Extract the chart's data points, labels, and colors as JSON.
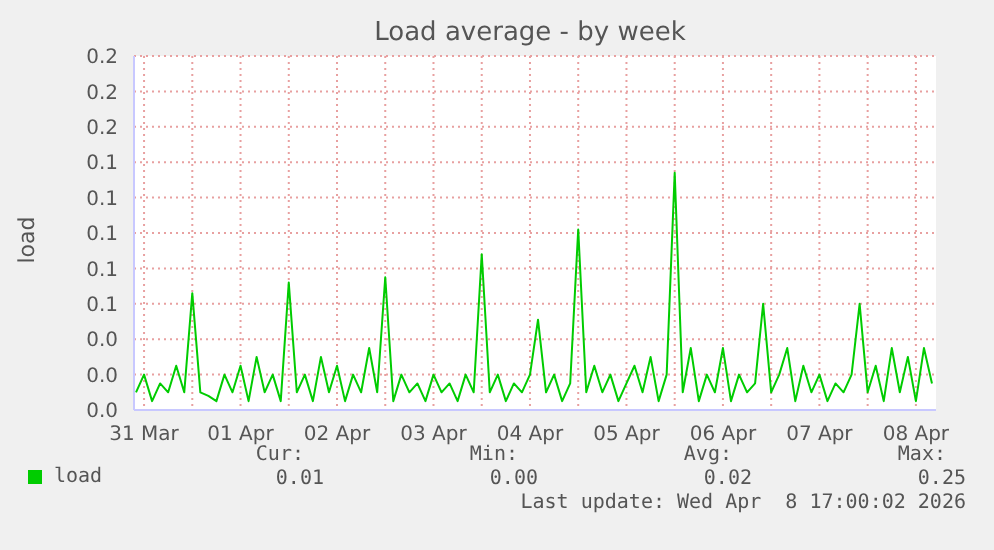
{
  "chart_data": {
    "type": "line",
    "title": "Load average - by week",
    "ylabel": "load",
    "x": [
      "2026-03-31T10:00",
      "2026-03-31T12:00",
      "2026-03-31T14:00",
      "2026-03-31T16:00",
      "2026-03-31T18:00",
      "2026-03-31T20:00",
      "2026-03-31T22:00",
      "2026-04-01T00:00",
      "2026-04-01T02:00",
      "2026-04-01T04:00",
      "2026-04-01T06:00",
      "2026-04-01T08:00",
      "2026-04-01T10:00",
      "2026-04-01T12:00",
      "2026-04-01T14:00",
      "2026-04-01T16:00",
      "2026-04-01T18:00",
      "2026-04-01T20:00",
      "2026-04-01T22:00",
      "2026-04-02T00:00",
      "2026-04-02T02:00",
      "2026-04-02T04:00",
      "2026-04-02T06:00",
      "2026-04-02T08:00",
      "2026-04-02T10:00",
      "2026-04-02T12:00",
      "2026-04-02T14:00",
      "2026-04-02T16:00",
      "2026-04-02T18:00",
      "2026-04-02T20:00",
      "2026-04-02T22:00",
      "2026-04-03T00:00",
      "2026-04-03T02:00",
      "2026-04-03T04:00",
      "2026-04-03T06:00",
      "2026-04-03T08:00",
      "2026-04-03T10:00",
      "2026-04-03T12:00",
      "2026-04-03T14:00",
      "2026-04-03T16:00",
      "2026-04-03T18:00",
      "2026-04-03T20:00",
      "2026-04-03T22:00",
      "2026-04-04T00:00",
      "2026-04-04T02:00",
      "2026-04-04T04:00",
      "2026-04-04T06:00",
      "2026-04-04T08:00",
      "2026-04-04T10:00",
      "2026-04-04T12:00",
      "2026-04-04T14:00",
      "2026-04-04T16:00",
      "2026-04-04T18:00",
      "2026-04-04T20:00",
      "2026-04-04T22:00",
      "2026-04-05T00:00",
      "2026-04-05T02:00",
      "2026-04-05T04:00",
      "2026-04-05T06:00",
      "2026-04-05T08:00",
      "2026-04-05T10:00",
      "2026-04-05T12:00",
      "2026-04-05T14:00",
      "2026-04-05T16:00",
      "2026-04-05T18:00",
      "2026-04-05T20:00",
      "2026-04-05T22:00",
      "2026-04-06T00:00",
      "2026-04-06T02:00",
      "2026-04-06T04:00",
      "2026-04-06T06:00",
      "2026-04-06T08:00",
      "2026-04-06T10:00",
      "2026-04-06T12:00",
      "2026-04-06T14:00",
      "2026-04-06T16:00",
      "2026-04-06T18:00",
      "2026-04-06T20:00",
      "2026-04-06T22:00",
      "2026-04-07T00:00",
      "2026-04-07T02:00",
      "2026-04-07T04:00",
      "2026-04-07T06:00",
      "2026-04-07T08:00",
      "2026-04-07T10:00",
      "2026-04-07T12:00",
      "2026-04-07T14:00",
      "2026-04-07T16:00",
      "2026-04-07T18:00",
      "2026-04-07T20:00",
      "2026-04-07T22:00",
      "2026-04-08T00:00",
      "2026-04-08T02:00",
      "2026-04-08T04:00",
      "2026-04-08T06:00",
      "2026-04-08T08:00",
      "2026-04-08T10:00",
      "2026-04-08T12:00",
      "2026-04-08T14:00",
      "2026-04-08T16:00"
    ],
    "series": [
      {
        "name": "load",
        "color": "#00cc00",
        "values": [
          0.01,
          0.02,
          0.005,
          0.015,
          0.01,
          0.025,
          0.01,
          0.066,
          0.01,
          0.008,
          0.005,
          0.02,
          0.01,
          0.025,
          0.005,
          0.03,
          0.01,
          0.02,
          0.005,
          0.072,
          0.01,
          0.02,
          0.005,
          0.03,
          0.01,
          0.025,
          0.005,
          0.02,
          0.01,
          0.035,
          0.01,
          0.075,
          0.005,
          0.02,
          0.01,
          0.015,
          0.005,
          0.02,
          0.01,
          0.015,
          0.005,
          0.02,
          0.01,
          0.088,
          0.01,
          0.02,
          0.005,
          0.015,
          0.01,
          0.02,
          0.051,
          0.01,
          0.02,
          0.005,
          0.015,
          0.102,
          0.01,
          0.025,
          0.01,
          0.02,
          0.005,
          0.015,
          0.025,
          0.01,
          0.03,
          0.005,
          0.02,
          0.134,
          0.01,
          0.035,
          0.005,
          0.02,
          0.01,
          0.035,
          0.005,
          0.02,
          0.01,
          0.015,
          0.06,
          0.01,
          0.02,
          0.035,
          0.005,
          0.025,
          0.01,
          0.02,
          0.005,
          0.015,
          0.01,
          0.02,
          0.06,
          0.01,
          0.025,
          0.005,
          0.035,
          0.01,
          0.03,
          0.005,
          0.035,
          0.015
        ]
      }
    ],
    "xlim": [
      "2026-03-31T09:30",
      "2026-04-08T17:00"
    ],
    "xticks": [
      {
        "value": "2026-03-31T12:00",
        "label": "31 Mar"
      },
      {
        "value": "2026-04-01T00:00",
        "label": null
      },
      {
        "value": "2026-04-01T12:00",
        "label": "01 Apr"
      },
      {
        "value": "2026-04-02T00:00",
        "label": null
      },
      {
        "value": "2026-04-02T12:00",
        "label": "02 Apr"
      },
      {
        "value": "2026-04-03T00:00",
        "label": null
      },
      {
        "value": "2026-04-03T12:00",
        "label": "03 Apr"
      },
      {
        "value": "2026-04-04T00:00",
        "label": null
      },
      {
        "value": "2026-04-04T12:00",
        "label": "04 Apr"
      },
      {
        "value": "2026-04-05T00:00",
        "label": null
      },
      {
        "value": "2026-04-05T12:00",
        "label": "05 Apr"
      },
      {
        "value": "2026-04-06T00:00",
        "label": null
      },
      {
        "value": "2026-04-06T12:00",
        "label": "06 Apr"
      },
      {
        "value": "2026-04-07T00:00",
        "label": null
      },
      {
        "value": "2026-04-07T12:00",
        "label": "07 Apr"
      },
      {
        "value": "2026-04-08T00:00",
        "label": null
      },
      {
        "value": "2026-04-08T12:00",
        "label": "08 Apr"
      }
    ],
    "ylim": [
      0,
      0.2
    ],
    "yticks": [
      {
        "value": 0,
        "label": "0.0"
      },
      {
        "value": 0.02,
        "label": "0.0"
      },
      {
        "value": 0.04,
        "label": "0.0"
      },
      {
        "value": 0.06,
        "label": "0.1"
      },
      {
        "value": 0.08,
        "label": "0.1"
      },
      {
        "value": 0.1,
        "label": "0.1"
      },
      {
        "value": 0.12,
        "label": "0.1"
      },
      {
        "value": 0.14,
        "label": "0.1"
      },
      {
        "value": 0.16,
        "label": "0.2"
      },
      {
        "value": 0.18,
        "label": "0.2"
      },
      {
        "value": 0.2,
        "label": "0.2"
      }
    ],
    "grid": true,
    "legend": "bottom left",
    "marker": "none",
    "line_style": "solid",
    "annotations": [
      "Cur:",
      "Min:",
      "Avg:",
      "Max:",
      "0.01",
      "0.00",
      "0.02",
      "0.25",
      "Last update: Wed Apr  8 17:00:02 2026"
    ]
  }
}
